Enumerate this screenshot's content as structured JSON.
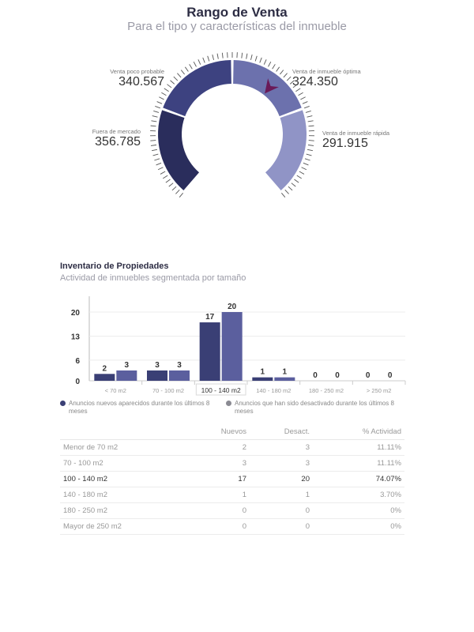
{
  "gauge": {
    "title": "Rango de Venta",
    "subtitle": "Para el tipo y características del inmueble",
    "labels": [
      {
        "label": "Fuera de mercado",
        "value": "356.785"
      },
      {
        "label": "Venta poco probable",
        "value": "340.567"
      },
      {
        "label": "Venta de inmueble óptima",
        "value": "324.350"
      },
      {
        "label": "Venta de inmueble rápida",
        "value": "291.915"
      }
    ],
    "segment_colors": [
      "#2a2d5c",
      "#3d4280",
      "#6c71ad",
      "#9094c6"
    ],
    "needle_color": "#6a1a58",
    "needle_segment": "Venta de inmueble óptima"
  },
  "inventory": {
    "title": "Inventario de Propiedades",
    "subtitle": "Actividad de inmuebles segmentada por tamaño",
    "legend": [
      {
        "label": "Anuncios nuevos aparecidos durante los últimos 8 meses",
        "color": "#3a3f75"
      },
      {
        "label": "Anuncios que han sido desactivado durante los últimos 8 meses",
        "color": "#8a8a92"
      }
    ],
    "table": {
      "headers": [
        "",
        "Nuevos",
        "Desact.",
        "% Actividad"
      ],
      "rows": [
        [
          "Menor de 70 m2",
          "2",
          "3",
          "11.11%"
        ],
        [
          "70 - 100 m2",
          "3",
          "3",
          "11.11%"
        ],
        [
          "100 - 140 m2",
          "17",
          "20",
          "74.07%"
        ],
        [
          "140 - 180 m2",
          "1",
          "1",
          "3.70%"
        ],
        [
          "180 - 250 m2",
          "0",
          "0",
          "0%"
        ],
        [
          "Mayor de 250 m2",
          "0",
          "0",
          "0%"
        ]
      ],
      "highlight_row": 2
    }
  },
  "chart_data": {
    "type": "bar",
    "categories": [
      "< 70 m2",
      "70 - 100 m2",
      "100 - 140 m2",
      "140 - 180 m2",
      "180 - 250 m2",
      "> 250 m2"
    ],
    "series": [
      {
        "name": "Anuncios nuevos aparecidos durante los últimos 8 meses",
        "values": [
          2,
          3,
          17,
          1,
          0,
          0
        ],
        "color": "#3a3f75"
      },
      {
        "name": "Anuncios que han sido desactivado durante los últimos 8 meses",
        "values": [
          3,
          3,
          20,
          1,
          0,
          0
        ],
        "color": "#5b5f9e"
      }
    ],
    "yticks": [
      0,
      6,
      13,
      20
    ],
    "ylim": [
      0,
      20
    ],
    "highlight_category": "100 - 140 m2",
    "title": "",
    "xlabel": "",
    "ylabel": "",
    "grid": true
  }
}
